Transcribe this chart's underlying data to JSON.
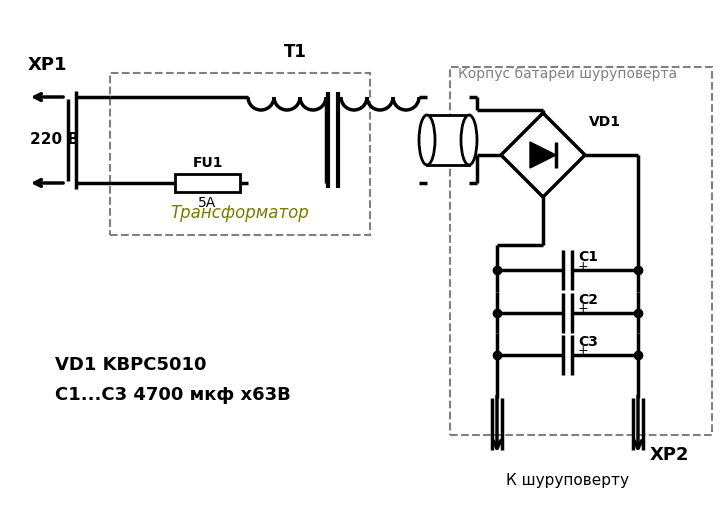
{
  "bg_color": "#ffffff",
  "line_color": "#000000",
  "dashed_color": "#808080",
  "text_transformer": "Трансформатор",
  "text_battery": "Корпус батареи шуруповерта",
  "text_xp1": "ХР1",
  "text_xp2": "ХР2",
  "text_t1": "T1",
  "text_vd1": "VD1",
  "text_fu1": "FU1",
  "text_5a": "5A",
  "text_220v": "220 В",
  "text_c1": "C1",
  "text_c2": "C2",
  "text_c3": "C3",
  "text_k_shurup": "К шуруповерту",
  "text_legend1": "VD1 KBPC5010",
  "text_legend2": "C1...C3 4700 мкф х63В",
  "transformer_label_color": "#7a7a00",
  "dashed_box_color": "#808080",
  "figsize": [
    7.27,
    5.21
  ],
  "dpi": 100
}
